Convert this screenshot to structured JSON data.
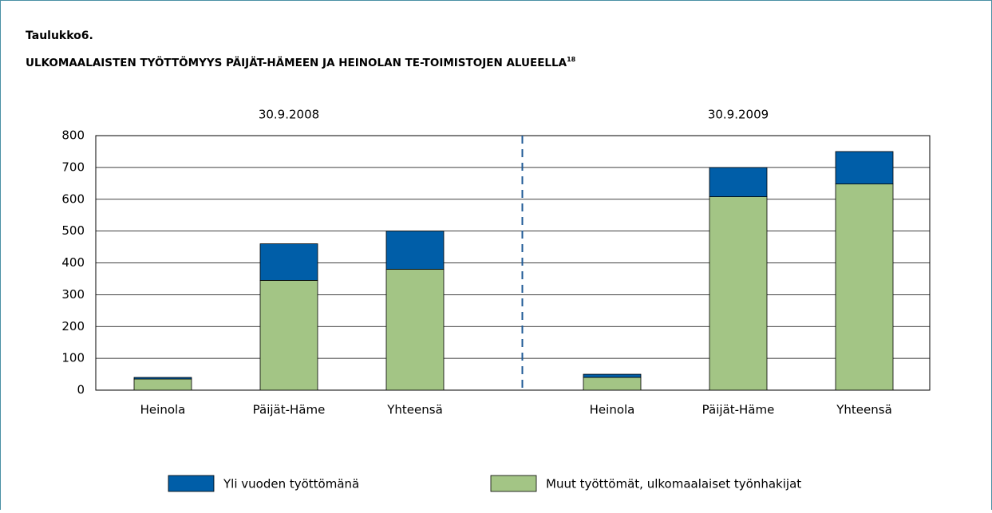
{
  "chart_data": {
    "type": "stacked_bar",
    "title": "Taulukko6.",
    "subtitle": "ULKOMAALAISTEN TYÖTTÖMYYS PÄIJÄT-HÄMEEN JA HEINOLAN TE-TOIMISTOJEN ALUEELLA",
    "subtitle_superscript": "18",
    "groups": [
      "30.9.2008",
      "30.9.2009"
    ],
    "categories": [
      "Heinola",
      "Päijät-Häme",
      "Yhteensä",
      "Heinola",
      "Päijät-Häme",
      "Yhteensä"
    ],
    "series": [
      {
        "name": "Yli vuoden työttömänä",
        "color": "#005ea8",
        "values": [
          5,
          115,
          120,
          10,
          92,
          102
        ]
      },
      {
        "name": "Muut työttömät, ulkomaalaiset työnhakijat",
        "color": "#a3c585",
        "values": [
          35,
          345,
          380,
          40,
          608,
          648
        ]
      }
    ],
    "ylim": [
      0,
      800
    ],
    "yticks": [
      0,
      100,
      200,
      300,
      400,
      500,
      600,
      700,
      800
    ],
    "grid": true
  }
}
